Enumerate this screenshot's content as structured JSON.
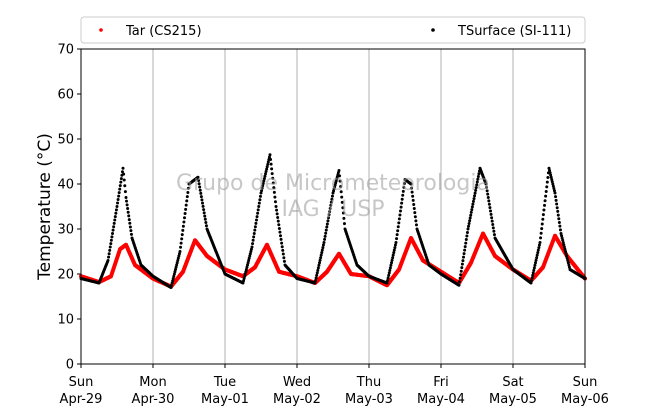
{
  "chart_data": {
    "type": "scatter",
    "title": "",
    "xlabel": "",
    "ylabel": "Temperature (°C)",
    "ylim": [
      0,
      70
    ],
    "yticks": [
      0,
      10,
      20,
      30,
      40,
      50,
      60,
      70
    ],
    "xlim_days": [
      0,
      7
    ],
    "grid": "vertical",
    "legend_position": "top",
    "watermark": [
      "Grupo de Micrometeorologia",
      "IAG / USP"
    ],
    "x_ticks": [
      {
        "day": "Sun",
        "date": "Apr-29"
      },
      {
        "day": "Mon",
        "date": "Apr-30"
      },
      {
        "day": "Tue",
        "date": "May-01"
      },
      {
        "day": "Wed",
        "date": "May-02"
      },
      {
        "day": "Thu",
        "date": "May-03"
      },
      {
        "day": "Fri",
        "date": "May-04"
      },
      {
        "day": "Sat",
        "date": "May-05"
      },
      {
        "day": "Sun",
        "date": "May-06"
      }
    ],
    "series": [
      {
        "name": "Tar (CS215)",
        "color": "#ff0000",
        "x": [
          "Apr-29 00:00",
          "Apr-29 06:00",
          "Apr-29 10:00",
          "Apr-29 13:00",
          "Apr-29 15:00",
          "Apr-29 18:00",
          "Apr-30 00:00",
          "Apr-30 06:00",
          "Apr-30 10:00",
          "Apr-30 14:00",
          "Apr-30 18:00",
          "May-01 00:00",
          "May-01 06:00",
          "May-01 10:00",
          "May-01 14:00",
          "May-01 18:00",
          "May-02 00:00",
          "May-02 06:00",
          "May-02 10:00",
          "May-02 14:00",
          "May-02 18:00",
          "May-03 00:00",
          "May-03 06:00",
          "May-03 10:00",
          "May-03 14:00",
          "May-03 18:00",
          "May-04 00:00",
          "May-04 06:00",
          "May-04 10:00",
          "May-04 14:00",
          "May-04 18:00",
          "May-05 00:00",
          "May-05 06:00",
          "May-05 10:00",
          "May-05 14:00",
          "May-05 18:00",
          "May-06 00:00"
        ],
        "y": [
          19.5,
          18.2,
          19.5,
          25.5,
          26.5,
          22.0,
          19.0,
          17.2,
          20.5,
          27.5,
          24.0,
          21.0,
          19.5,
          21.5,
          26.5,
          20.5,
          19.5,
          18.0,
          20.5,
          24.5,
          20.0,
          19.5,
          17.5,
          21.0,
          28.0,
          23.0,
          20.5,
          18.0,
          22.5,
          29.0,
          24.0,
          21.0,
          18.5,
          21.5,
          28.5,
          24.0,
          19.0
        ]
      },
      {
        "name": "TSurface (SI-111)",
        "color": "#000000",
        "x": [
          "Apr-29 00:00",
          "Apr-29 06:00",
          "Apr-29 09:00",
          "Apr-29 12:00",
          "Apr-29 14:00",
          "Apr-29 15:00",
          "Apr-29 17:00",
          "Apr-29 20:00",
          "Apr-30 00:00",
          "Apr-30 06:00",
          "Apr-30 09:00",
          "Apr-30 12:00",
          "Apr-30 15:00",
          "Apr-30 18:00",
          "May-01 00:00",
          "May-01 06:00",
          "May-01 09:00",
          "May-01 12:00",
          "May-01 15:00",
          "May-01 17:00",
          "May-01 20:00",
          "May-02 00:00",
          "May-02 06:00",
          "May-02 09:00",
          "May-02 12:00",
          "May-02 14:00",
          "May-02 16:00",
          "May-02 20:00",
          "May-03 00:00",
          "May-03 06:00",
          "May-03 09:00",
          "May-03 12:00",
          "May-03 14:00",
          "May-03 16:00",
          "May-03 20:00",
          "May-04 00:00",
          "May-04 06:00",
          "May-04 09:00",
          "May-04 13:00",
          "May-04 15:00",
          "May-04 18:00",
          "May-05 00:00",
          "May-05 06:00",
          "May-05 09:00",
          "May-05 12:00",
          "May-05 14:00",
          "May-05 16:00",
          "May-05 19:00",
          "May-06 00:00"
        ],
        "y": [
          19.0,
          18.0,
          23.0,
          35.0,
          43.5,
          37.0,
          28.0,
          22.0,
          19.5,
          17.0,
          25.0,
          40.0,
          41.5,
          30.0,
          20.0,
          18.0,
          26.0,
          38.0,
          46.5,
          35.0,
          22.0,
          19.0,
          18.0,
          27.0,
          38.0,
          43.0,
          30.0,
          22.0,
          19.5,
          18.0,
          27.0,
          41.0,
          40.0,
          30.0,
          22.0,
          20.0,
          17.5,
          30.0,
          43.5,
          40.0,
          28.0,
          21.0,
          18.0,
          27.0,
          43.5,
          38.0,
          29.0,
          21.0,
          19.0
        ]
      }
    ]
  }
}
